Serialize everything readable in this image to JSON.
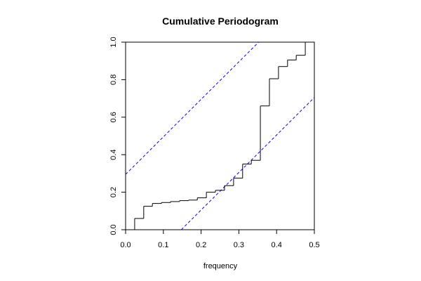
{
  "chart_data": {
    "type": "step",
    "title": "Cumulative Periodogram",
    "x_label": "frequency",
    "x": [
      0,
      0.024,
      0.048,
      0.071,
      0.095,
      0.119,
      0.143,
      0.167,
      0.19,
      0.214,
      0.238,
      0.262,
      0.286,
      0.31,
      0.333,
      0.357,
      0.381,
      0.405,
      0.429,
      0.452,
      0.476
    ],
    "values": [
      0,
      0.06,
      0.125,
      0.14,
      0.145,
      0.15,
      0.155,
      0.158,
      0.17,
      0.2,
      0.21,
      0.235,
      0.275,
      0.35,
      0.37,
      0.66,
      0.805,
      0.87,
      0.905,
      0.93,
      1.0
    ],
    "color": "#000000",
    "bands": [
      {
        "x": [
          0,
          0.3525
        ],
        "values": [
          0.295,
          1.0
        ]
      },
      {
        "x": [
          0.1475,
          0.5
        ],
        "values": [
          0,
          0.705
        ]
      }
    ],
    "band_color": "#0000ff",
    "xlim": [
      0,
      0.5
    ],
    "ylim": [
      0,
      1.0
    ],
    "xticks": [
      {
        "value": 0,
        "label": "0.0"
      },
      0.1,
      0.2,
      0.3,
      0.4,
      0.5
    ],
    "yticks": [
      {
        "value": 0,
        "label": "0.0"
      },
      0.2,
      0.4,
      0.6,
      0.8,
      {
        "value": 1,
        "label": "1.0"
      }
    ]
  }
}
